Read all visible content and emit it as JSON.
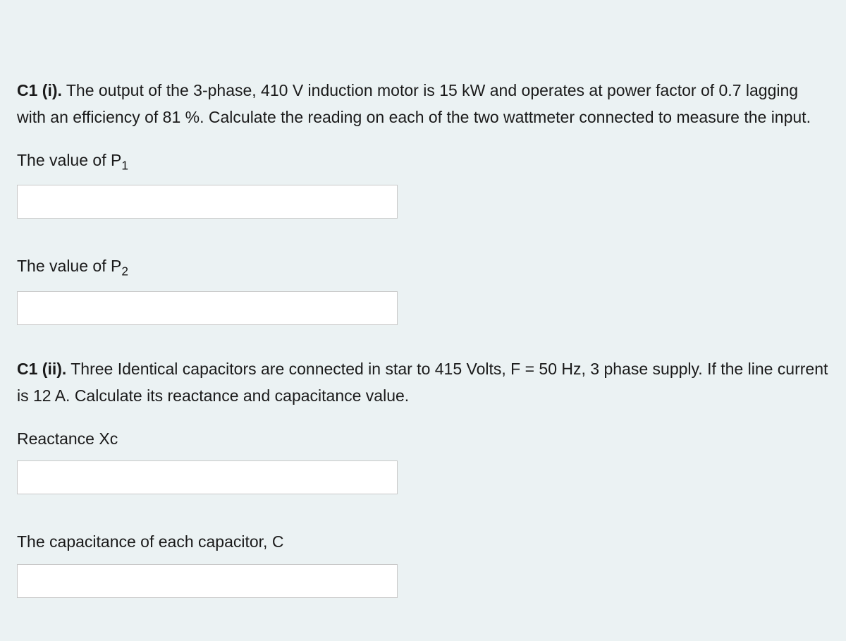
{
  "colors": {
    "background": "#ebf2f3",
    "text": "#1a1a1a",
    "input_bg": "#ffffff",
    "input_border": "#c8c8c8"
  },
  "typography": {
    "body_fontsize": 23,
    "font_family": "Arial"
  },
  "layout": {
    "input_width": 540,
    "input_height": 48
  },
  "question1": {
    "prefix": "C1 (i).",
    "body": " The output of the 3-phase, 410 V induction motor is 15 kW and operates at power factor of 0.7 lagging with an efficiency of 81 %. Calculate the reading on each of the two wattmeter connected to measure the input.",
    "field1": {
      "label_pre": "The value of  P",
      "label_sub": "1",
      "value": ""
    },
    "field2": {
      "label_pre": "The value of  P",
      "label_sub": "2",
      "value": ""
    }
  },
  "question2": {
    "prefix": "C1 (ii).",
    "body": " Three Identical capacitors are connected in star to 415 Volts, F = 50 Hz, 3 phase supply. If the line current is 12 A. Calculate its reactance and capacitance value.",
    "field1": {
      "label": "Reactance Xc",
      "value": ""
    },
    "field2": {
      "label": "The capacitance of each capacitor, C",
      "value": ""
    }
  }
}
